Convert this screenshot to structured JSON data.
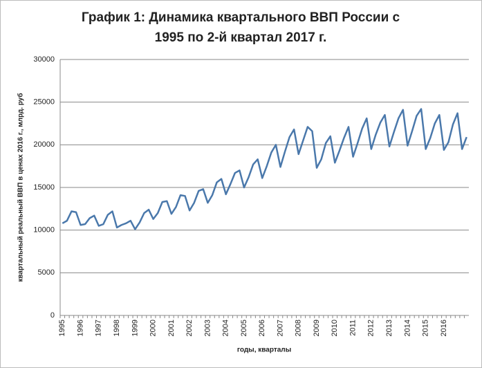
{
  "chart_data": {
    "type": "line",
    "title": [
      "График 1: Динамика квартального ВВП России с",
      "1995 по 2-й квартал 2017 г."
    ],
    "y_label": "квартальный  реальный ВВП в ценах 2016 г., млрд. руб",
    "x_label": "годы, кварталы",
    "categories": [
      "1995",
      null,
      null,
      null,
      "1996",
      null,
      null,
      null,
      "1997",
      null,
      null,
      null,
      "1998",
      null,
      null,
      null,
      "1999",
      null,
      null,
      null,
      "2000",
      null,
      null,
      null,
      "2001",
      null,
      null,
      null,
      "2002",
      null,
      null,
      null,
      "2003",
      null,
      null,
      null,
      "2004",
      null,
      null,
      null,
      "2005",
      null,
      null,
      null,
      "2006",
      null,
      null,
      null,
      "2007",
      null,
      null,
      null,
      "2008",
      null,
      null,
      null,
      "2009",
      null,
      null,
      null,
      "2010",
      null,
      null,
      null,
      "2011",
      null,
      null,
      null,
      "2012",
      null,
      null,
      null,
      "2013",
      null,
      null,
      null,
      "2014",
      null,
      null,
      null,
      "2015",
      null,
      null,
      null,
      "2016",
      null,
      null,
      null,
      null,
      null
    ],
    "series": [
      {
        "color": "#4a78ab",
        "values": [
          10800,
          11100,
          12200,
          12100,
          10600,
          10700,
          11400,
          11700,
          10500,
          10700,
          11800,
          12200,
          10300,
          10600,
          10800,
          11100,
          10100,
          10900,
          12000,
          12400,
          11300,
          12000,
          13300,
          13400,
          11900,
          12700,
          14100,
          14000,
          12300,
          13200,
          14600,
          14800,
          13200,
          14100,
          15600,
          16000,
          14200,
          15400,
          16700,
          17000,
          15000,
          16200,
          17700,
          18300,
          16100,
          17500,
          19100,
          20000,
          17400,
          19200,
          20900,
          21800,
          18900,
          20500,
          22100,
          21600,
          17300,
          18300,
          20200,
          21000,
          17900,
          19300,
          20800,
          22100,
          18600,
          20200,
          21900,
          23100,
          19500,
          21200,
          22600,
          23500,
          19800,
          21500,
          23100,
          24100,
          19900,
          21600,
          23400,
          24200,
          19500,
          20800,
          22500,
          23500,
          19400,
          20300,
          22400,
          23700,
          19500,
          20900
        ]
      }
    ],
    "ylim": [
      0,
      30000
    ],
    "yticks": [
      0,
      5000,
      10000,
      15000,
      20000,
      25000,
      30000
    ],
    "grid": true
  }
}
